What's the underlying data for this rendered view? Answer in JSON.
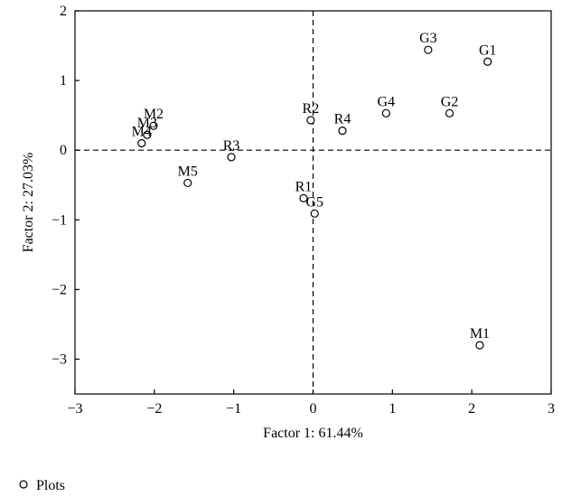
{
  "chart_data": {
    "type": "scatter",
    "xlabel": "Factor 1: 61.44%",
    "ylabel": "Factor 2: 27.03%",
    "xlim": [
      -3,
      3
    ],
    "ylim": [
      -3.5,
      2
    ],
    "xticks": [
      -3,
      -2,
      -1,
      0,
      1,
      2,
      3
    ],
    "yticks": [
      2,
      1,
      0,
      -1,
      -2,
      -3
    ],
    "xtick_labels": [
      "−3",
      "−2",
      "−1",
      "0",
      "1",
      "2",
      "3"
    ],
    "ytick_labels": [
      "2",
      "1",
      "0",
      "−1",
      "−2",
      "−3"
    ],
    "grid": false,
    "reference_lines": {
      "x": 0,
      "y": 0,
      "style": "dashed"
    },
    "legend": {
      "placement": "bottom-left",
      "entries": [
        "Plots"
      ]
    },
    "series": [
      {
        "name": "Plots",
        "marker": "open-circle",
        "points": [
          {
            "label": "G1",
            "x": 2.2,
            "y": 1.27
          },
          {
            "label": "G2",
            "x": 1.72,
            "y": 0.53
          },
          {
            "label": "G3",
            "x": 1.45,
            "y": 1.44
          },
          {
            "label": "G4",
            "x": 0.92,
            "y": 0.53
          },
          {
            "label": "G5",
            "x": 0.02,
            "y": -0.91
          },
          {
            "label": "R1",
            "x": -0.12,
            "y": -0.69
          },
          {
            "label": "R2",
            "x": -0.03,
            "y": 0.43
          },
          {
            "label": "R3",
            "x": -1.03,
            "y": -0.1
          },
          {
            "label": "R4",
            "x": 0.37,
            "y": 0.28
          },
          {
            "label": "M1",
            "x": 2.1,
            "y": -2.8
          },
          {
            "label": "M2",
            "x": -2.01,
            "y": 0.35
          },
          {
            "label": "M3",
            "x": -2.09,
            "y": 0.22
          },
          {
            "label": "M4",
            "x": -2.16,
            "y": 0.1
          },
          {
            "label": "M5",
            "x": -1.58,
            "y": -0.47
          }
        ]
      }
    ]
  }
}
